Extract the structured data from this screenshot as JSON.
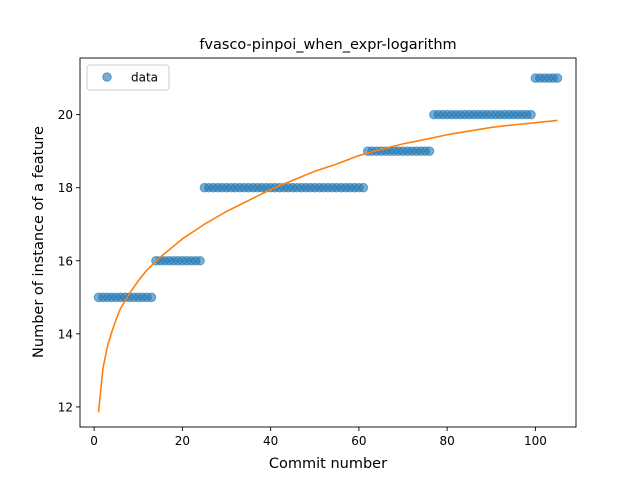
{
  "chart_data": {
    "type": "scatter",
    "title": "fvasco-pinpoi_when_expr-logarithm",
    "xlabel": "Commit number",
    "ylabel": "Number of instance of a feature",
    "xlim": [
      -3.2,
      109.2
    ],
    "ylim": [
      11.45,
      21.55
    ],
    "x_ticks": [
      0,
      20,
      40,
      60,
      80,
      100
    ],
    "y_ticks": [
      12,
      14,
      16,
      18,
      20
    ],
    "grid": false,
    "legend": {
      "placement": "top-left",
      "entries": [
        "data"
      ]
    },
    "colors": {
      "data": "#1f77b4",
      "fit": "#ff7f0e"
    },
    "series": [
      {
        "name": "data",
        "kind": "points",
        "points": [
          [
            1,
            15
          ],
          [
            2,
            15
          ],
          [
            3,
            15
          ],
          [
            4,
            15
          ],
          [
            5,
            15
          ],
          [
            6,
            15
          ],
          [
            7,
            15
          ],
          [
            8,
            15
          ],
          [
            9,
            15
          ],
          [
            10,
            15
          ],
          [
            11,
            15
          ],
          [
            12,
            15
          ],
          [
            13,
            15
          ],
          [
            14,
            16
          ],
          [
            15,
            16
          ],
          [
            16,
            16
          ],
          [
            17,
            16
          ],
          [
            18,
            16
          ],
          [
            19,
            16
          ],
          [
            20,
            16
          ],
          [
            21,
            16
          ],
          [
            22,
            16
          ],
          [
            23,
            16
          ],
          [
            24,
            16
          ],
          [
            25,
            18
          ],
          [
            26,
            18
          ],
          [
            27,
            18
          ],
          [
            28,
            18
          ],
          [
            29,
            18
          ],
          [
            30,
            18
          ],
          [
            31,
            18
          ],
          [
            32,
            18
          ],
          [
            33,
            18
          ],
          [
            34,
            18
          ],
          [
            35,
            18
          ],
          [
            36,
            18
          ],
          [
            37,
            18
          ],
          [
            38,
            18
          ],
          [
            39,
            18
          ],
          [
            40,
            18
          ],
          [
            41,
            18
          ],
          [
            42,
            18
          ],
          [
            43,
            18
          ],
          [
            44,
            18
          ],
          [
            45,
            18
          ],
          [
            46,
            18
          ],
          [
            47,
            18
          ],
          [
            48,
            18
          ],
          [
            49,
            18
          ],
          [
            50,
            18
          ],
          [
            51,
            18
          ],
          [
            52,
            18
          ],
          [
            53,
            18
          ],
          [
            54,
            18
          ],
          [
            55,
            18
          ],
          [
            56,
            18
          ],
          [
            57,
            18
          ],
          [
            58,
            18
          ],
          [
            59,
            18
          ],
          [
            60,
            18
          ],
          [
            61,
            18
          ],
          [
            62,
            19
          ],
          [
            63,
            19
          ],
          [
            64,
            19
          ],
          [
            65,
            19
          ],
          [
            66,
            19
          ],
          [
            67,
            19
          ],
          [
            68,
            19
          ],
          [
            69,
            19
          ],
          [
            70,
            19
          ],
          [
            71,
            19
          ],
          [
            72,
            19
          ],
          [
            73,
            19
          ],
          [
            74,
            19
          ],
          [
            75,
            19
          ],
          [
            76,
            19
          ],
          [
            77,
            20
          ],
          [
            78,
            20
          ],
          [
            79,
            20
          ],
          [
            80,
            20
          ],
          [
            81,
            20
          ],
          [
            82,
            20
          ],
          [
            83,
            20
          ],
          [
            84,
            20
          ],
          [
            85,
            20
          ],
          [
            86,
            20
          ],
          [
            87,
            20
          ],
          [
            88,
            20
          ],
          [
            89,
            20
          ],
          [
            90,
            20
          ],
          [
            91,
            20
          ],
          [
            92,
            20
          ],
          [
            93,
            20
          ],
          [
            94,
            20
          ],
          [
            95,
            20
          ],
          [
            96,
            20
          ],
          [
            97,
            20
          ],
          [
            98,
            20
          ],
          [
            99,
            20
          ],
          [
            100,
            21
          ],
          [
            101,
            21
          ],
          [
            102,
            21
          ],
          [
            103,
            21
          ],
          [
            104,
            21
          ],
          [
            105,
            21
          ]
        ]
      },
      {
        "kind": "line",
        "points": [
          [
            1,
            11.85
          ],
          [
            2,
            13.05
          ],
          [
            3,
            13.65
          ],
          [
            4,
            14.05
          ],
          [
            5,
            14.4
          ],
          [
            6,
            14.7
          ],
          [
            8,
            15.1
          ],
          [
            10,
            15.45
          ],
          [
            12,
            15.75
          ],
          [
            15,
            16.1
          ],
          [
            20,
            16.6
          ],
          [
            25,
            17.0
          ],
          [
            30,
            17.35
          ],
          [
            35,
            17.65
          ],
          [
            40,
            17.95
          ],
          [
            45,
            18.2
          ],
          [
            50,
            18.45
          ],
          [
            55,
            18.65
          ],
          [
            60,
            18.88
          ],
          [
            65,
            19.05
          ],
          [
            70,
            19.2
          ],
          [
            75,
            19.32
          ],
          [
            80,
            19.45
          ],
          [
            85,
            19.55
          ],
          [
            90,
            19.65
          ],
          [
            95,
            19.72
          ],
          [
            100,
            19.78
          ],
          [
            105,
            19.84
          ]
        ]
      }
    ]
  }
}
